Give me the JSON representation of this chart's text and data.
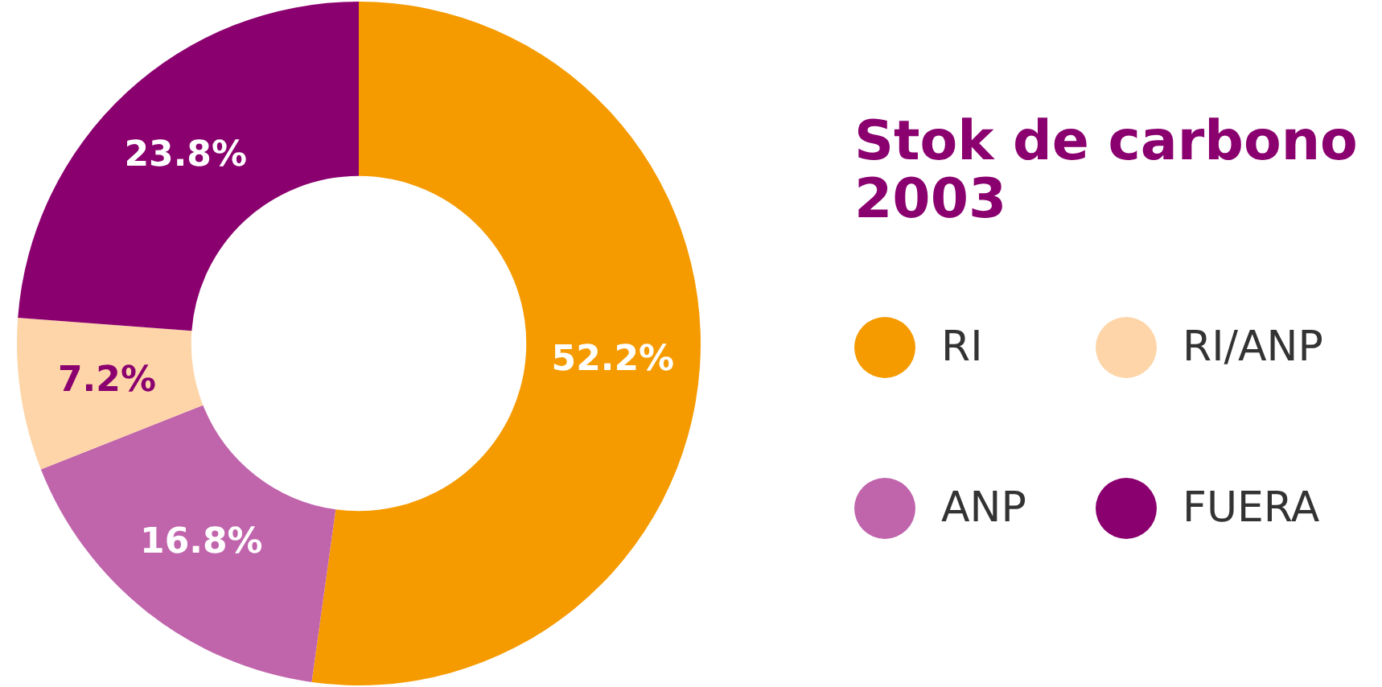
{
  "chart_data": {
    "type": "donut",
    "title": "Stok de carbono 2003",
    "categories": [
      "RI",
      "ANP",
      "RI/ANP",
      "FUERA"
    ],
    "values": [
      52.2,
      16.8,
      7.2,
      23.8
    ],
    "value_labels": [
      "52.2%",
      "16.8%",
      "7.2%",
      "23.8%"
    ],
    "colors": [
      "#f59b00",
      "#c064ac",
      "#fdd5a8",
      "#8b006f"
    ],
    "legend": "right"
  }
}
